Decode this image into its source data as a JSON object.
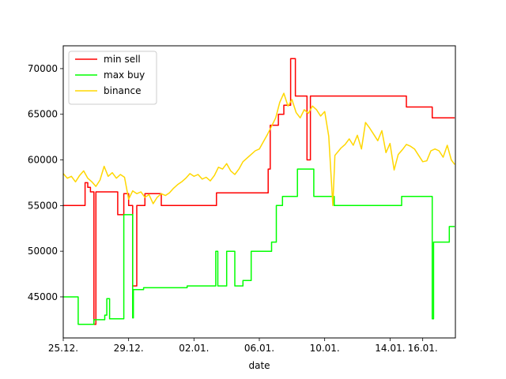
{
  "chart_data": {
    "type": "line",
    "title": "",
    "xlabel": "date",
    "ylabel": "",
    "x_unit": "days",
    "xlim": [
      "2021-12-25",
      "2022-01-18"
    ],
    "ylim": [
      40500,
      72500
    ],
    "x_ticks": [
      {
        "date": "2021-12-25",
        "label": "25.12."
      },
      {
        "date": "2021-12-29",
        "label": "29.12."
      },
      {
        "date": "2022-01-02",
        "label": "02.01."
      },
      {
        "date": "2022-01-06",
        "label": "06.01."
      },
      {
        "date": "2022-01-10",
        "label": "10.01."
      },
      {
        "date": "2022-01-14",
        "label": "14.01."
      },
      {
        "date": "2022-01-16",
        "label": "16.01."
      }
    ],
    "y_ticks": [
      {
        "value": 45000,
        "label": "45000"
      },
      {
        "value": 50000,
        "label": "50000"
      },
      {
        "value": 55000,
        "label": "55000"
      },
      {
        "value": 60000,
        "label": "60000"
      },
      {
        "value": 65000,
        "label": "65000"
      },
      {
        "value": 70000,
        "label": "70000"
      }
    ],
    "grid": false,
    "legend_position": "top-left",
    "series": [
      {
        "name": "min sell",
        "color": "#ff0000",
        "step": true,
        "points": [
          [
            "2021-12-25T00:00",
            55000
          ],
          [
            "2021-12-26T08:00",
            57500
          ],
          [
            "2021-12-26T12:00",
            57000
          ],
          [
            "2021-12-26T16:00",
            56500
          ],
          [
            "2021-12-26T21:00",
            42000
          ],
          [
            "2021-12-27T00:00",
            56500
          ],
          [
            "2021-12-28T08:00",
            54000
          ],
          [
            "2021-12-28T17:00",
            56300
          ],
          [
            "2021-12-29T00:00",
            55000
          ],
          [
            "2021-12-29T06:00",
            46200
          ],
          [
            "2021-12-29T12:00",
            55000
          ],
          [
            "2021-12-30T00:00",
            56300
          ],
          [
            "2021-12-31T00:00",
            55000
          ],
          [
            "2022-01-03T09:00",
            56400
          ],
          [
            "2022-01-06T13:00",
            59000
          ],
          [
            "2022-01-06T16:00",
            63800
          ],
          [
            "2022-01-07T04:00",
            65000
          ],
          [
            "2022-01-07T12:00",
            66000
          ],
          [
            "2022-01-07T22:00",
            71100
          ],
          [
            "2022-01-08T05:00",
            67000
          ],
          [
            "2022-01-08T22:00",
            60000
          ],
          [
            "2022-01-09T03:00",
            67000
          ],
          [
            "2022-01-15T00:00",
            65800
          ],
          [
            "2022-01-16T14:00",
            64600
          ],
          [
            "2022-01-17T23:00",
            64600
          ]
        ]
      },
      {
        "name": "max buy",
        "color": "#00ff00",
        "step": true,
        "points": [
          [
            "2021-12-25T00:00",
            45000
          ],
          [
            "2021-12-25T22:00",
            42000
          ],
          [
            "2021-12-26T21:00",
            42500
          ],
          [
            "2021-12-27T13:00",
            43000
          ],
          [
            "2021-12-27T16:00",
            44800
          ],
          [
            "2021-12-27T20:00",
            42600
          ],
          [
            "2021-12-28T17:00",
            54000
          ],
          [
            "2021-12-29T06:00",
            42700
          ],
          [
            "2021-12-29T07:00",
            45800
          ],
          [
            "2021-12-29T22:00",
            46000
          ],
          [
            "2022-01-01T14:00",
            46200
          ],
          [
            "2022-01-03T08:00",
            50000
          ],
          [
            "2022-01-03T11:00",
            46200
          ],
          [
            "2022-01-04T00:00",
            50000
          ],
          [
            "2022-01-04T12:00",
            46200
          ],
          [
            "2022-01-05T00:00",
            46800
          ],
          [
            "2022-01-05T12:00",
            50000
          ],
          [
            "2022-01-06T18:00",
            51000
          ],
          [
            "2022-01-07T01:00",
            55000
          ],
          [
            "2022-01-07T10:00",
            56000
          ],
          [
            "2022-01-08T08:00",
            59000
          ],
          [
            "2022-01-09T08:00",
            56000
          ],
          [
            "2022-01-10T14:00",
            55000
          ],
          [
            "2022-01-14T17:00",
            56000
          ],
          [
            "2022-01-16T14:00",
            42600
          ],
          [
            "2022-01-16T16:00",
            51000
          ],
          [
            "2022-01-17T15:00",
            52700
          ],
          [
            "2022-01-17T23:00",
            52700
          ]
        ]
      },
      {
        "name": "binance",
        "color": "#ffd700",
        "step": false,
        "points": [
          [
            "2021-12-25T00:00",
            58500
          ],
          [
            "2021-12-25T06:00",
            58000
          ],
          [
            "2021-12-25T12:00",
            58200
          ],
          [
            "2021-12-25T18:00",
            57600
          ],
          [
            "2021-12-26T00:00",
            58300
          ],
          [
            "2021-12-26T06:00",
            58800
          ],
          [
            "2021-12-26T12:00",
            58000
          ],
          [
            "2021-12-26T18:00",
            57600
          ],
          [
            "2021-12-27T00:00",
            57100
          ],
          [
            "2021-12-27T06:00",
            57800
          ],
          [
            "2021-12-27T12:00",
            59300
          ],
          [
            "2021-12-27T18:00",
            58200
          ],
          [
            "2021-12-28T00:00",
            58600
          ],
          [
            "2021-12-28T06:00",
            58000
          ],
          [
            "2021-12-28T12:00",
            58400
          ],
          [
            "2021-12-28T18:00",
            58100
          ],
          [
            "2021-12-29T00:00",
            55700
          ],
          [
            "2021-12-29T06:00",
            56600
          ],
          [
            "2021-12-29T12:00",
            56300
          ],
          [
            "2021-12-29T18:00",
            56500
          ],
          [
            "2021-12-30T00:00",
            55900
          ],
          [
            "2021-12-30T06:00",
            56200
          ],
          [
            "2021-12-30T12:00",
            55200
          ],
          [
            "2021-12-30T18:00",
            55900
          ],
          [
            "2021-12-31T00:00",
            56300
          ],
          [
            "2021-12-31T06:00",
            56100
          ],
          [
            "2021-12-31T12:00",
            56400
          ],
          [
            "2021-12-31T18:00",
            56900
          ],
          [
            "2022-01-01T00:00",
            57300
          ],
          [
            "2022-01-01T06:00",
            57600
          ],
          [
            "2022-01-01T12:00",
            58000
          ],
          [
            "2022-01-01T18:00",
            58500
          ],
          [
            "2022-01-02T00:00",
            58200
          ],
          [
            "2022-01-02T06:00",
            58400
          ],
          [
            "2022-01-02T12:00",
            57900
          ],
          [
            "2022-01-02T18:00",
            58100
          ],
          [
            "2022-01-03T00:00",
            57700
          ],
          [
            "2022-01-03T06:00",
            58300
          ],
          [
            "2022-01-03T12:00",
            59200
          ],
          [
            "2022-01-03T18:00",
            59000
          ],
          [
            "2022-01-04T00:00",
            59600
          ],
          [
            "2022-01-04T06:00",
            58800
          ],
          [
            "2022-01-04T12:00",
            58400
          ],
          [
            "2022-01-04T18:00",
            59000
          ],
          [
            "2022-01-05T00:00",
            59800
          ],
          [
            "2022-01-05T06:00",
            60200
          ],
          [
            "2022-01-05T12:00",
            60600
          ],
          [
            "2022-01-05T18:00",
            61000
          ],
          [
            "2022-01-06T00:00",
            61200
          ],
          [
            "2022-01-06T06:00",
            62000
          ],
          [
            "2022-01-06T12:00",
            62800
          ],
          [
            "2022-01-06T18:00",
            63700
          ],
          [
            "2022-01-07T00:00",
            64600
          ],
          [
            "2022-01-07T06:00",
            66300
          ],
          [
            "2022-01-07T12:00",
            67300
          ],
          [
            "2022-01-07T18:00",
            65900
          ],
          [
            "2022-01-08T00:00",
            66600
          ],
          [
            "2022-01-08T06:00",
            65200
          ],
          [
            "2022-01-08T12:00",
            64600
          ],
          [
            "2022-01-08T18:00",
            65500
          ],
          [
            "2022-01-09T00:00",
            65100
          ],
          [
            "2022-01-09T06:00",
            65900
          ],
          [
            "2022-01-09T12:00",
            65500
          ],
          [
            "2022-01-09T18:00",
            64800
          ],
          [
            "2022-01-10T00:00",
            65300
          ],
          [
            "2022-01-10T06:00",
            62600
          ],
          [
            "2022-01-10T12:00",
            55000
          ],
          [
            "2022-01-10T15:00",
            60500
          ],
          [
            "2022-01-11T00:00",
            61300
          ],
          [
            "2022-01-11T06:00",
            61700
          ],
          [
            "2022-01-11T12:00",
            62300
          ],
          [
            "2022-01-11T18:00",
            61600
          ],
          [
            "2022-01-12T00:00",
            62700
          ],
          [
            "2022-01-12T06:00",
            61200
          ],
          [
            "2022-01-12T12:00",
            64100
          ],
          [
            "2022-01-12T18:00",
            63500
          ],
          [
            "2022-01-13T00:00",
            62800
          ],
          [
            "2022-01-13T06:00",
            62100
          ],
          [
            "2022-01-13T12:00",
            63200
          ],
          [
            "2022-01-13T18:00",
            60800
          ],
          [
            "2022-01-14T00:00",
            61800
          ],
          [
            "2022-01-14T06:00",
            58900
          ],
          [
            "2022-01-14T12:00",
            60600
          ],
          [
            "2022-01-14T18:00",
            61100
          ],
          [
            "2022-01-15T00:00",
            61700
          ],
          [
            "2022-01-15T06:00",
            61500
          ],
          [
            "2022-01-15T12:00",
            61200
          ],
          [
            "2022-01-15T18:00",
            60500
          ],
          [
            "2022-01-16T00:00",
            59800
          ],
          [
            "2022-01-16T06:00",
            59900
          ],
          [
            "2022-01-16T12:00",
            61000
          ],
          [
            "2022-01-16T18:00",
            61200
          ],
          [
            "2022-01-17T00:00",
            61000
          ],
          [
            "2022-01-17T06:00",
            60300
          ],
          [
            "2022-01-17T12:00",
            61600
          ],
          [
            "2022-01-17T18:00",
            60000
          ],
          [
            "2022-01-17T23:00",
            59500
          ]
        ]
      }
    ]
  }
}
